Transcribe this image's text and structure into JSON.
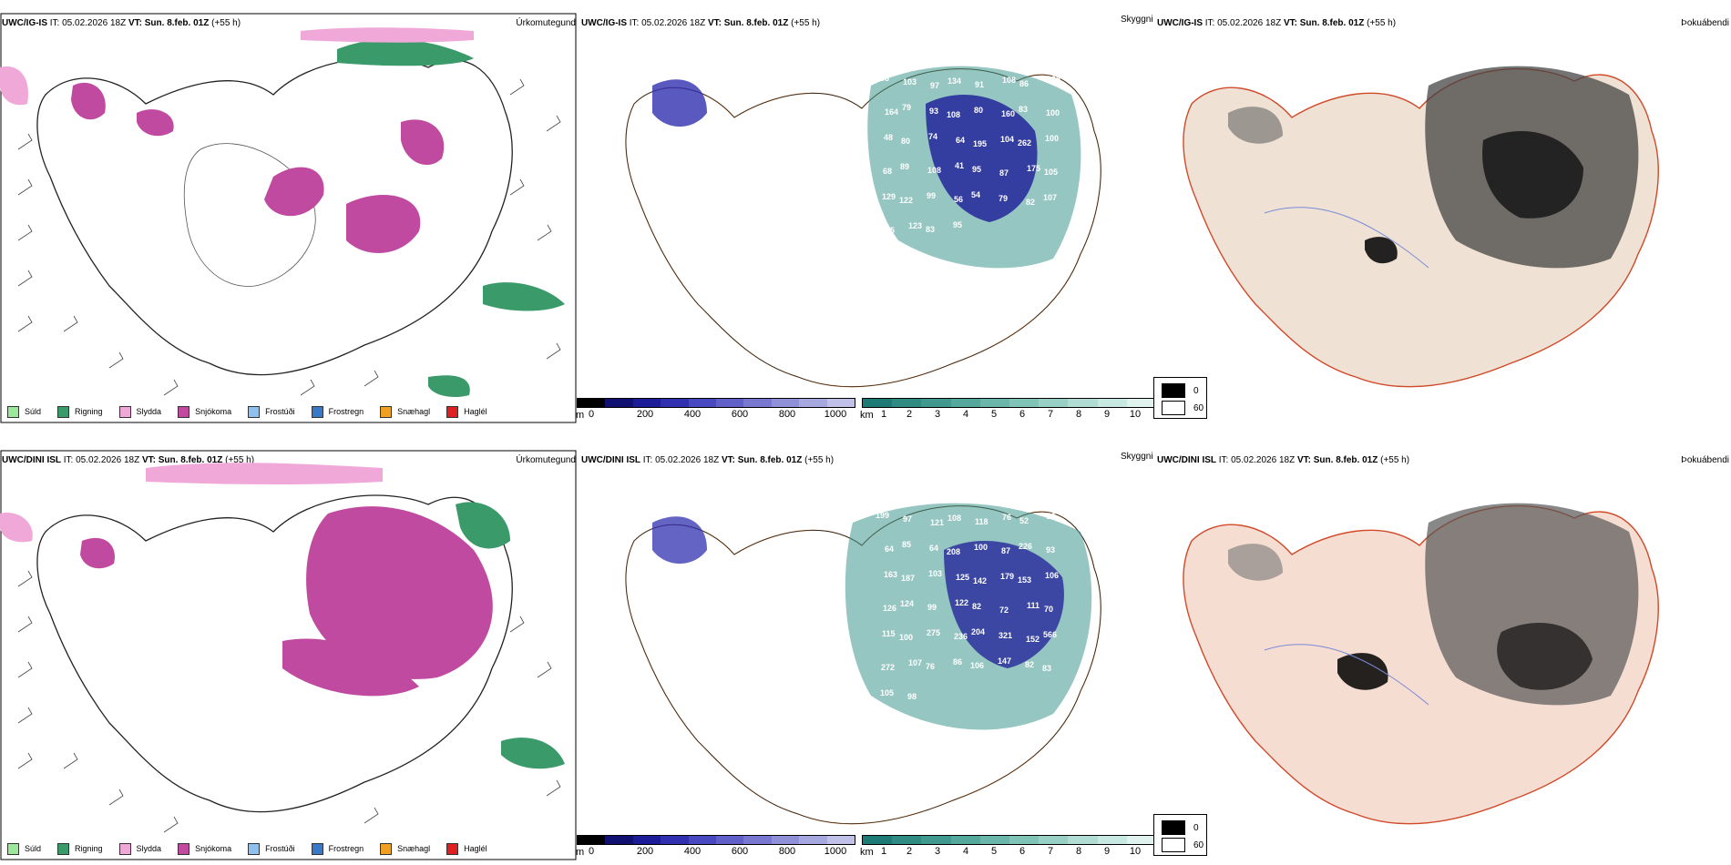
{
  "rows": [
    {
      "model": "UWC/IG-IS",
      "it_label": "IT:",
      "it_value": "05.02.2026 18Z",
      "vt_label": "VT:",
      "vt_value": "Sun. 8.feb. 01Z",
      "lead": "(+55 h)",
      "precip_type_title": "Úrkomutegund",
      "visibility_title": "Skyggni",
      "cloud_title": "Þokuábendi",
      "visibility_labels": [
        "303",
        "103",
        "97",
        "134",
        "91",
        "108",
        "86",
        "195",
        "164",
        "79",
        "93",
        "108",
        "80",
        "160",
        "83",
        "100",
        "48",
        "80",
        "74",
        "64",
        "195",
        "104",
        "262",
        "100",
        "68",
        "89",
        "108",
        "41",
        "95",
        "87",
        "175",
        "105",
        "129",
        "122",
        "99",
        "56",
        "54",
        "79",
        "82",
        "107",
        "145",
        "123",
        "83",
        "95"
      ],
      "cloud_label_count": 0
    },
    {
      "model": "UWC/DINI ISL",
      "it_label": "IT:",
      "it_value": "05.02.2026 18Z",
      "vt_label": "VT:",
      "vt_value": "Sun. 8.feb. 01Z",
      "lead": "(+55 h)",
      "precip_type_title": "Úrkomutegund",
      "visibility_title": "Skyggni",
      "cloud_title": "Þokuábendi",
      "visibility_labels": [
        "199",
        "97",
        "121",
        "108",
        "118",
        "76",
        "52",
        "25",
        "64",
        "85",
        "64",
        "208",
        "100",
        "87",
        "226",
        "93",
        "163",
        "187",
        "103",
        "125",
        "142",
        "179",
        "153",
        "106",
        "126",
        "124",
        "99",
        "122",
        "82",
        "72",
        "111",
        "70",
        "115",
        "100",
        "275",
        "236",
        "204",
        "321",
        "152",
        "566",
        "272",
        "107",
        "76",
        "86",
        "106",
        "147",
        "82",
        "83",
        "105",
        "98"
      ],
      "cloud_label_count": 0
    }
  ],
  "precip_legend": [
    {
      "label": "Súld",
      "color": "#9be89b"
    },
    {
      "label": "Rigning",
      "color": "#3a9a6a"
    },
    {
      "label": "Slydda",
      "color": "#f0a8d8"
    },
    {
      "label": "Snjókoma",
      "color": "#c04aa0"
    },
    {
      "label": "Frostúði",
      "color": "#8ec0f0"
    },
    {
      "label": "Frostregn",
      "color": "#3a78c8"
    },
    {
      "label": "Snæhagl",
      "color": "#f0a020"
    },
    {
      "label": "Haglél",
      "color": "#e02020"
    }
  ],
  "ceiling_scale": {
    "unit": "m",
    "ticks": [
      "0",
      "200",
      "400",
      "600",
      "800",
      "1000"
    ],
    "colors": [
      "#000000",
      "#101070",
      "#1c1c98",
      "#3030b0",
      "#4848c0",
      "#6060c8",
      "#7878d0",
      "#9090d8",
      "#a8a8e0",
      "#c0c0e8"
    ]
  },
  "vis_scale": {
    "unit": "km",
    "ticks": [
      "1",
      "2",
      "3",
      "4",
      "5",
      "6",
      "7",
      "8",
      "9",
      "10"
    ],
    "colors": [
      "#1e7a74",
      "#2f8a82",
      "#40988e",
      "#55a89c",
      "#6ab6aa",
      "#80c4b8",
      "#98d0c6",
      "#b0dcd4",
      "#c8e8e2",
      "#e0f2ee"
    ]
  },
  "cloud_legend": [
    {
      "label": "0",
      "color": "#000000"
    },
    {
      "label": "60",
      "color": "#ffffff"
    }
  ]
}
